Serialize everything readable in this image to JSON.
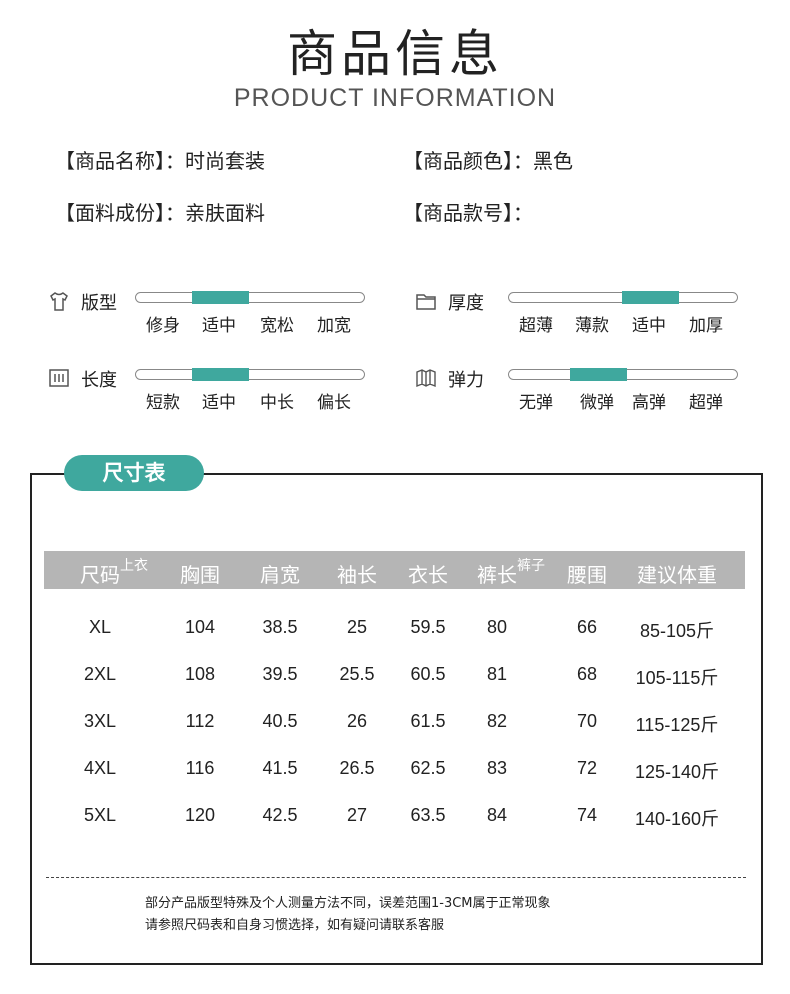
{
  "header": {
    "title": "商品信息",
    "subtitle": "PRODUCT INFORMATION"
  },
  "info": [
    {
      "label": "【商品名称】：",
      "value": "时尚套装"
    },
    {
      "label": "【商品颜色】：",
      "value": "黑色"
    },
    {
      "label": "【面料成份】：",
      "value": "亲肤面料"
    },
    {
      "label": "【商品款号】：",
      "value": ""
    }
  ],
  "attributes": [
    {
      "label": "版型",
      "icon": "tshirt-icon",
      "options": [
        "修身",
        "适中",
        "宽松",
        "加宽"
      ],
      "selected_index": 1
    },
    {
      "label": "厚度",
      "icon": "folder-icon",
      "options": [
        "超薄",
        "薄款",
        "适中",
        "加厚"
      ],
      "selected_index": 2
    },
    {
      "label": "长度",
      "icon": "ruler-icon",
      "options": [
        "短款",
        "适中",
        "中长",
        "偏长"
      ],
      "selected_index": 1
    },
    {
      "label": "弹力",
      "icon": "map-icon",
      "options": [
        "无弹",
        "微弹",
        "高弹",
        "超弹"
      ],
      "selected_index": 1
    }
  ],
  "accent_color": "#3fa89e",
  "size_table": {
    "tab": "尺寸表",
    "headers": [
      {
        "text": "尺码",
        "sup": "上衣"
      },
      {
        "text": "胸围"
      },
      {
        "text": "肩宽"
      },
      {
        "text": "袖长"
      },
      {
        "text": "衣长"
      },
      {
        "text": "裤长",
        "sup": "裤子"
      },
      {
        "text": "腰围"
      },
      {
        "text": "建议体重"
      }
    ],
    "rows": [
      [
        "XL",
        "104",
        "38.5",
        "25",
        "59.5",
        "80",
        "66",
        "85-105斤"
      ],
      [
        "2XL",
        "108",
        "39.5",
        "25.5",
        "60.5",
        "81",
        "68",
        "105-115斤"
      ],
      [
        "3XL",
        "112",
        "40.5",
        "26",
        "61.5",
        "82",
        "70",
        "115-125斤"
      ],
      [
        "4XL",
        "116",
        "41.5",
        "26.5",
        "62.5",
        "83",
        "72",
        "125-140斤"
      ],
      [
        "5XL",
        "120",
        "42.5",
        "27",
        "63.5",
        "84",
        "74",
        "140-160斤"
      ]
    ],
    "notes": [
      "部分产品版型特殊及个人测量方法不同，误差范围1-3CM属于正常现象",
      "请参照尺码表和自身习惯选择，如有疑问请联系客服"
    ]
  }
}
